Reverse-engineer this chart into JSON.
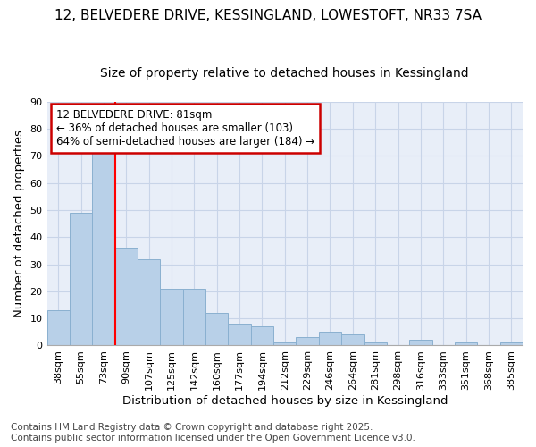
{
  "title_line1": "12, BELVEDERE DRIVE, KESSINGLAND, LOWESTOFT, NR33 7SA",
  "title_line2": "Size of property relative to detached houses in Kessingland",
  "xlabel": "Distribution of detached houses by size in Kessingland",
  "ylabel": "Number of detached properties",
  "categories": [
    "38sqm",
    "55sqm",
    "73sqm",
    "90sqm",
    "107sqm",
    "125sqm",
    "142sqm",
    "160sqm",
    "177sqm",
    "194sqm",
    "212sqm",
    "229sqm",
    "246sqm",
    "264sqm",
    "281sqm",
    "298sqm",
    "316sqm",
    "333sqm",
    "351sqm",
    "368sqm",
    "385sqm"
  ],
  "values": [
    13,
    49,
    73,
    36,
    32,
    21,
    21,
    12,
    8,
    7,
    1,
    3,
    5,
    4,
    1,
    0,
    2,
    0,
    1,
    0,
    1
  ],
  "bar_color": "#b8d0e8",
  "bar_edge_color": "#8ab0d0",
  "grid_color": "#c8d4e8",
  "background_color": "#ffffff",
  "plot_bg_color": "#e8eef8",
  "red_line_x": 2.5,
  "annotation_text": "12 BELVEDERE DRIVE: 81sqm\n← 36% of detached houses are smaller (103)\n64% of semi-detached houses are larger (184) →",
  "annotation_box_color": "#ffffff",
  "annotation_box_edge_color": "#cc0000",
  "footnote": "Contains HM Land Registry data © Crown copyright and database right 2025.\nContains public sector information licensed under the Open Government Licence v3.0.",
  "ylim": [
    0,
    90
  ],
  "title_fontsize": 11,
  "subtitle_fontsize": 10,
  "axis_label_fontsize": 9.5,
  "tick_fontsize": 8,
  "annotation_fontsize": 8.5,
  "footnote_fontsize": 7.5
}
